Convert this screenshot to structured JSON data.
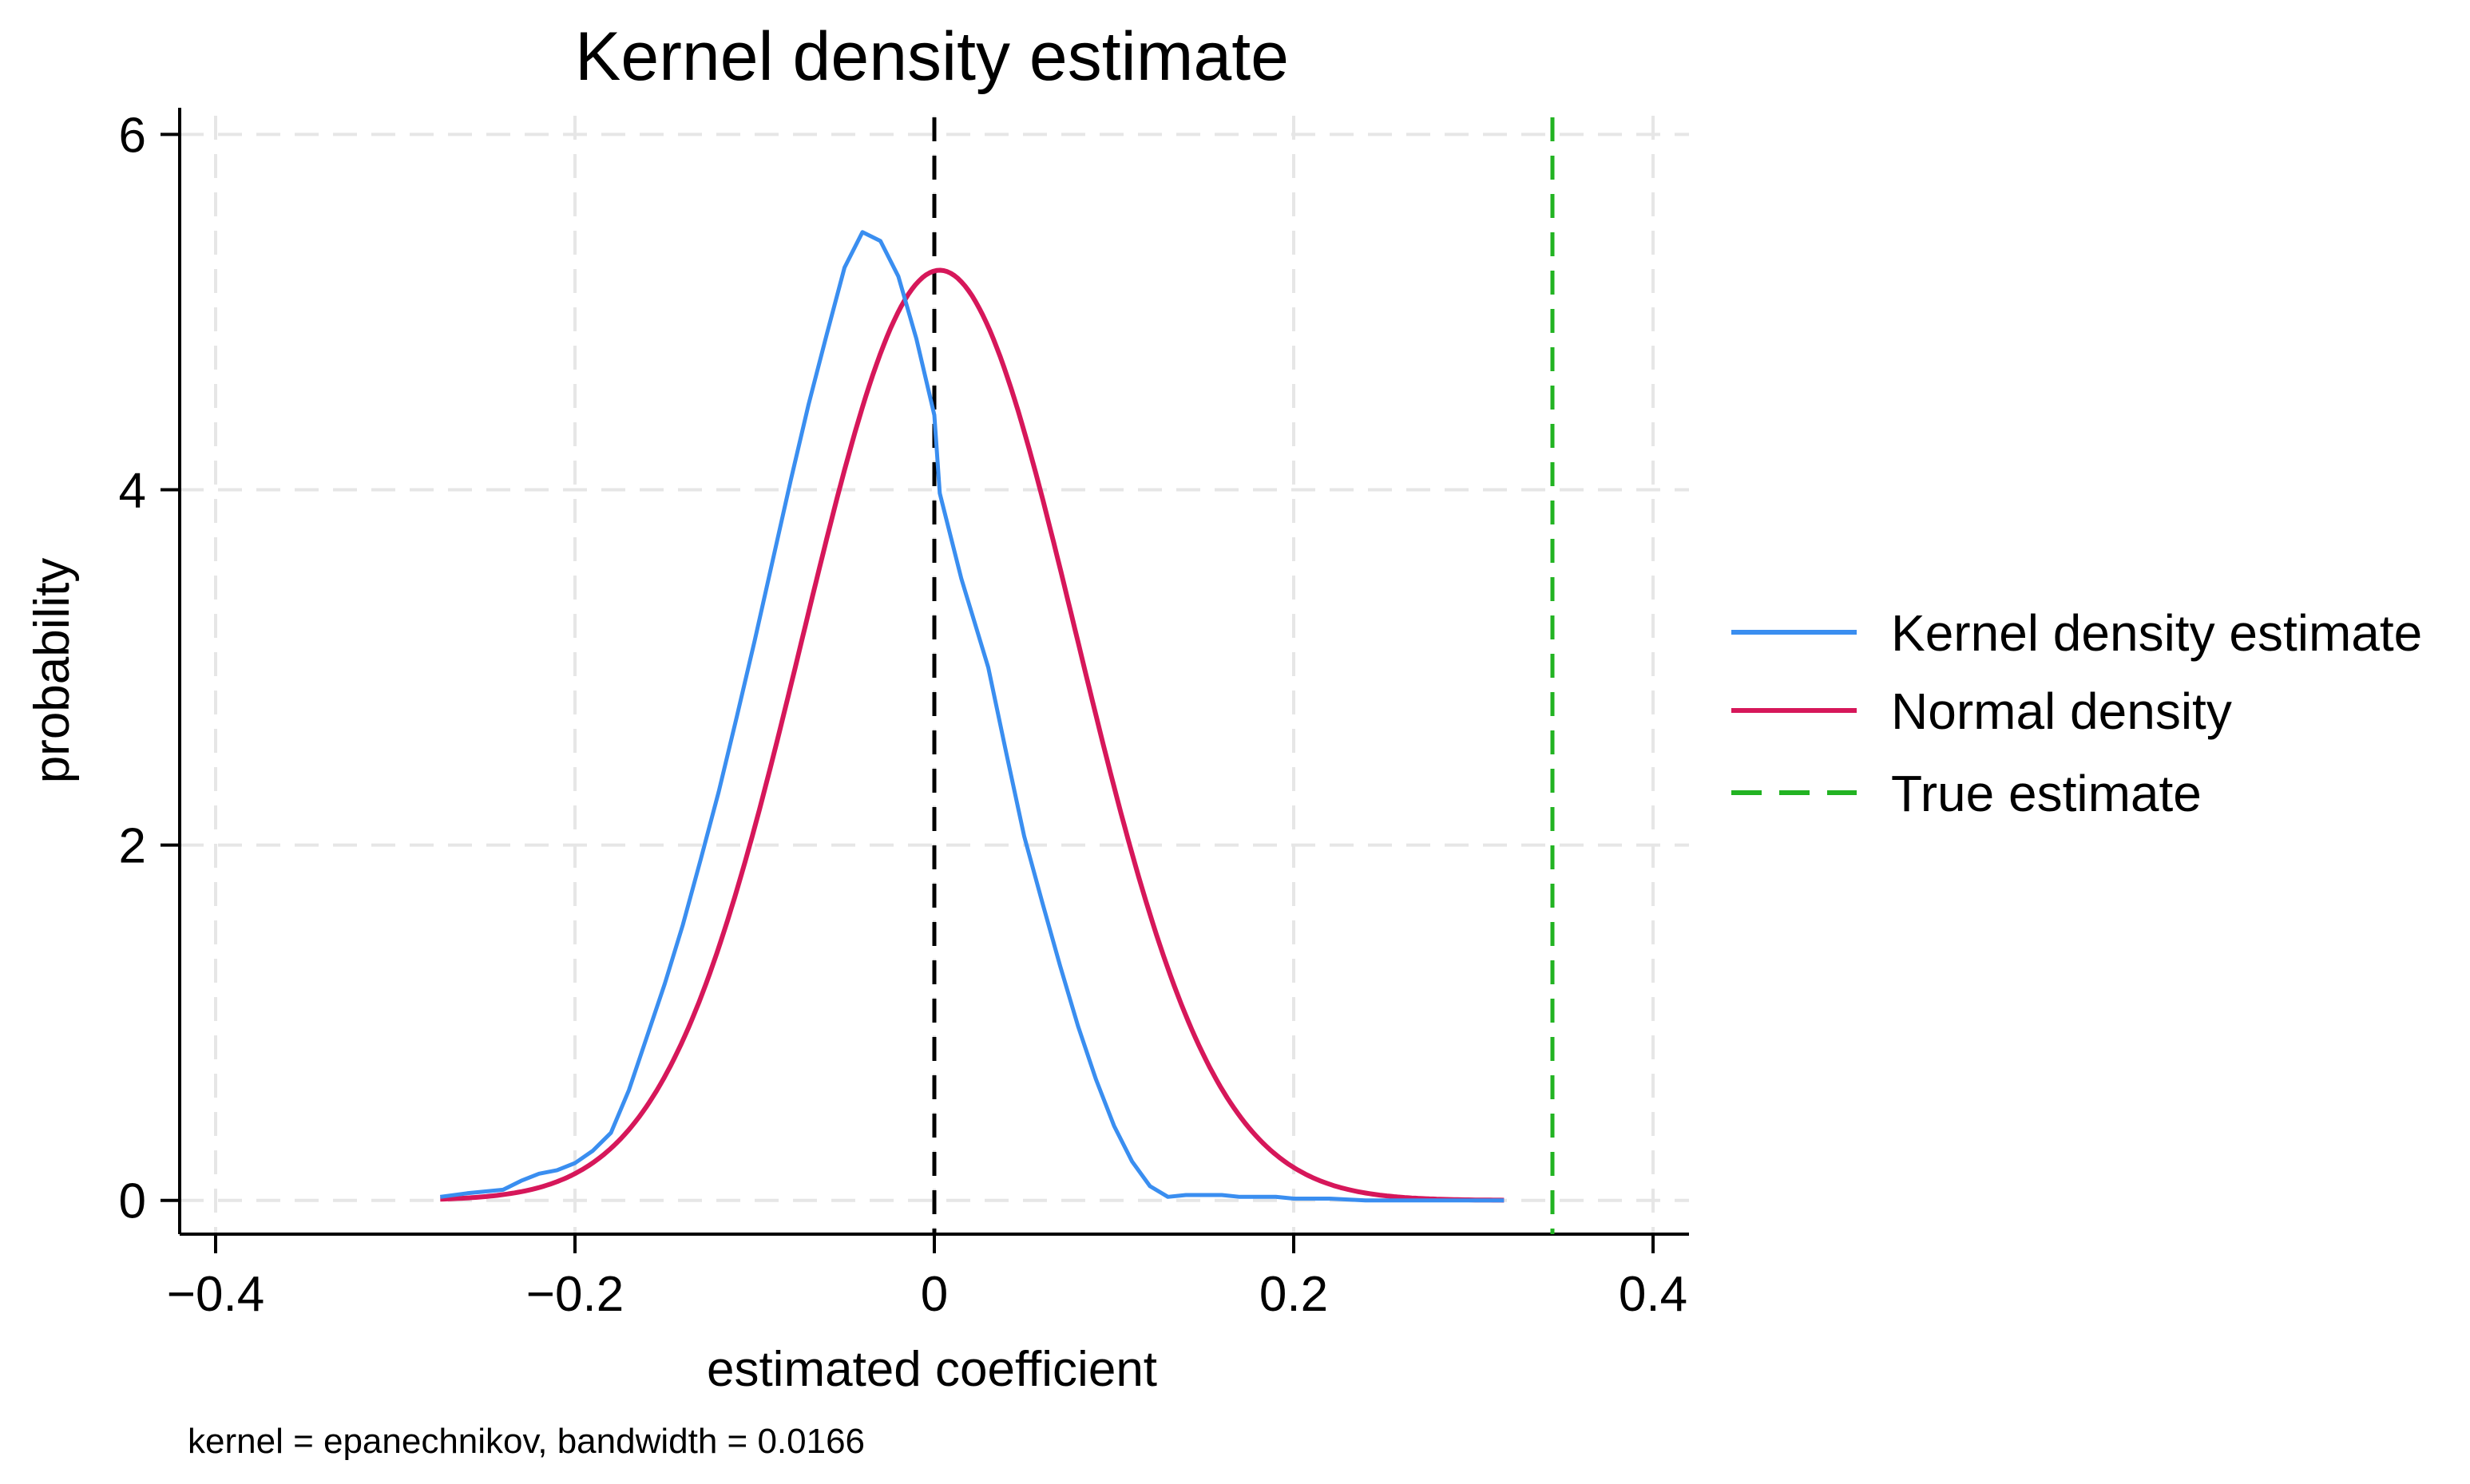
{
  "chart_data": {
    "type": "line",
    "title": "Kernel density estimate",
    "xlabel": "estimated coefficient",
    "ylabel": "probability",
    "note": "kernel = epanechnikov, bandwidth = 0.0166",
    "xlim": [
      -0.42,
      0.42
    ],
    "ylim": [
      -0.19,
      6.15
    ],
    "x_ticks": [
      -0.4,
      -0.2,
      0,
      0.2,
      0.4
    ],
    "x_tick_labels": [
      "−0.4",
      "−0.2",
      "0",
      "0.2",
      "0.4"
    ],
    "y_ticks": [
      0,
      2,
      4,
      6
    ],
    "y_tick_labels": [
      "0",
      "2",
      "4",
      "6"
    ],
    "grid": true,
    "legend_position": "right",
    "colors": {
      "kernel": "#3a8ef0",
      "normal": "#d6175a",
      "true_estimate": "#22b322",
      "zero_line": "#000000",
      "grid": "#e6e6e6"
    },
    "series": [
      {
        "name": "Kernel density estimate",
        "style": "solid",
        "x": [
          -0.275,
          -0.26,
          -0.24,
          -0.23,
          -0.22,
          -0.21,
          -0.2,
          -0.19,
          -0.18,
          -0.17,
          -0.16,
          -0.15,
          -0.14,
          -0.13,
          -0.12,
          -0.11,
          -0.1,
          -0.09,
          -0.08,
          -0.07,
          -0.06,
          -0.05,
          -0.04,
          -0.03,
          -0.02,
          -0.01,
          0.0,
          0.003,
          0.015,
          0.03,
          0.04,
          0.05,
          0.06,
          0.07,
          0.08,
          0.09,
          0.1,
          0.11,
          0.12,
          0.13,
          0.14,
          0.15,
          0.16,
          0.17,
          0.18,
          0.19,
          0.2,
          0.21,
          0.22,
          0.24,
          0.26,
          0.28,
          0.3,
          0.317
        ],
        "values": [
          0.02,
          0.04,
          0.06,
          0.11,
          0.15,
          0.17,
          0.21,
          0.28,
          0.38,
          0.62,
          0.92,
          1.22,
          1.55,
          1.92,
          2.3,
          2.72,
          3.15,
          3.6,
          4.05,
          4.48,
          4.87,
          5.25,
          5.45,
          5.4,
          5.2,
          4.85,
          4.42,
          3.98,
          3.5,
          3.0,
          2.52,
          2.05,
          1.68,
          1.32,
          0.98,
          0.68,
          0.42,
          0.22,
          0.08,
          0.02,
          0.03,
          0.03,
          0.03,
          0.02,
          0.02,
          0.02,
          0.01,
          0.01,
          0.01,
          0.0,
          0.0,
          0.0,
          0.0,
          0.0
        ]
      },
      {
        "name": "Normal density",
        "style": "solid",
        "mean": 0.003,
        "sd": 0.0762
      },
      {
        "name": "True estimate",
        "style": "dashed",
        "x": 0.344
      }
    ],
    "reference_lines": [
      {
        "x": 0,
        "style": "dashed",
        "color": "#000000"
      }
    ]
  }
}
